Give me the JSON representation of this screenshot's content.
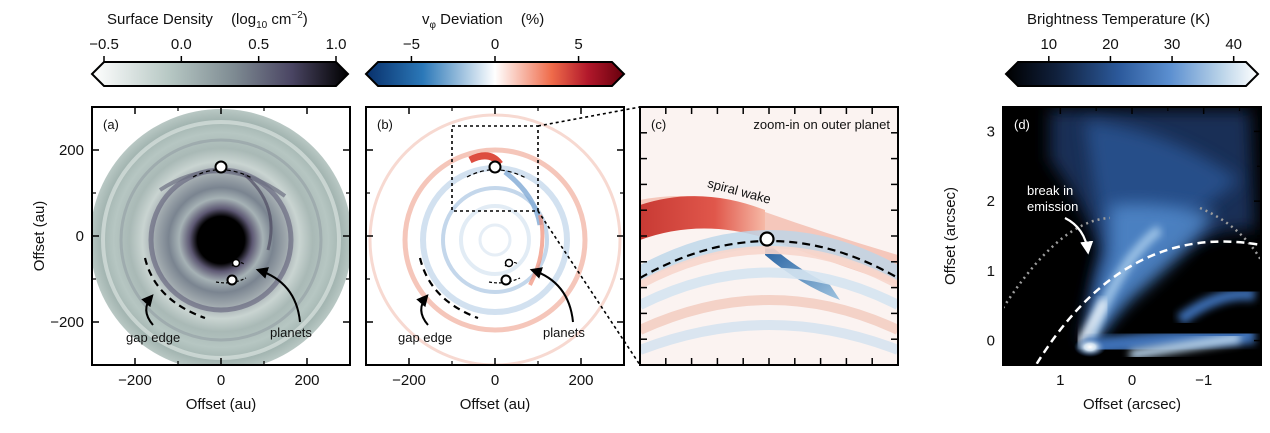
{
  "colorbars": [
    {
      "label_main": "Surface Density",
      "label_unit": "(log",
      "label_unit_sub": "10",
      "label_unit_tail": " cm",
      "label_unit_sup": "−2",
      "label_unit_close": ")",
      "ticks": [
        "−0.5",
        "0.0",
        "0.5",
        "1.0"
      ],
      "colors": [
        "#ffffff",
        "#b7c8c4",
        "#7f8c93",
        "#4a4563",
        "#000000"
      ]
    },
    {
      "label_main": "v",
      "label_sub": "φ",
      "label_tail": " Deviation",
      "label_unit": "(%)",
      "ticks": [
        "−5",
        "0",
        "5"
      ],
      "colors": [
        "#08306b",
        "#2b78b8",
        "#ffffff",
        "#ef6b4a",
        "#b2182b",
        "#67000d"
      ]
    },
    {
      "label_main": "Brightness Temperature (K)",
      "ticks": [
        "10",
        "20",
        "30",
        "40"
      ],
      "colors": [
        "#000000",
        "#10203c",
        "#2c5a9c",
        "#5b8fd0",
        "#b8d2e8",
        "#ffffff"
      ]
    }
  ],
  "panels": [
    {
      "letter": "(a)",
      "xlabel": "Offset (au)",
      "ylabel": "Offset (au)",
      "xticks": [
        "−200",
        "0",
        "200"
      ],
      "yticks": [
        "200",
        "0",
        "−200"
      ],
      "annotations": {
        "gap_edge": "gap edge",
        "planets": "planets"
      }
    },
    {
      "letter": "(b)",
      "xlabel": "Offset (au)",
      "xticks": [
        "−200",
        "0",
        "200"
      ],
      "annotations": {
        "gap_edge": "gap edge",
        "planets": "planets"
      }
    },
    {
      "letter": "(c)",
      "title": "zoom-in on outer planet",
      "annotations": {
        "spiral_wake": "spiral wake"
      }
    },
    {
      "letter": "(d)",
      "xlabel": "Offset (arcsec)",
      "ylabel": "Offset (arcsec)",
      "xticks": [
        "1",
        "0",
        "−1"
      ],
      "yticks": [
        "3",
        "2",
        "1",
        "0"
      ],
      "annotations": {
        "break": "break in",
        "break2": "emission"
      }
    }
  ],
  "chart_data": [
    {
      "type": "heatmap",
      "panel": "(a)",
      "quantity": "Surface Density (log10 cm^-2)",
      "xlabel": "Offset (au)",
      "ylabel": "Offset (au)",
      "xlim": [
        -300,
        300
      ],
      "ylim": [
        -300,
        300
      ],
      "color_range": [
        -0.5,
        1.0
      ],
      "planets_au": [
        [
          0,
          165
        ],
        [
          30,
          -55
        ],
        [
          28,
          -97
        ]
      ],
      "gap_edge_radius_au": 195
    },
    {
      "type": "heatmap",
      "panel": "(b)",
      "quantity": "v_phi Deviation (%)",
      "xlabel": "Offset (au)",
      "xlim": [
        -300,
        300
      ],
      "ylim": [
        -300,
        300
      ],
      "color_range": [
        -7,
        7
      ],
      "planets_au": [
        [
          0,
          165
        ],
        [
          30,
          -55
        ],
        [
          28,
          -97
        ]
      ],
      "zoom_box_au": {
        "x": [
          -100,
          100
        ],
        "y": [
          70,
          265
        ]
      }
    },
    {
      "type": "heatmap",
      "panel": "(c)",
      "quantity": "v_phi Deviation (%)",
      "note": "zoom-in on outer planet",
      "planet_au": [
        0,
        165
      ]
    },
    {
      "type": "heatmap",
      "panel": "(d)",
      "quantity": "Brightness Temperature (K)",
      "xlabel": "Offset (arcsec)",
      "ylabel": "Offset (arcsec)",
      "xlim": [
        1.8,
        -1.8
      ],
      "ylim": [
        -0.35,
        3.35
      ],
      "color_range": [
        5,
        42
      ]
    }
  ]
}
